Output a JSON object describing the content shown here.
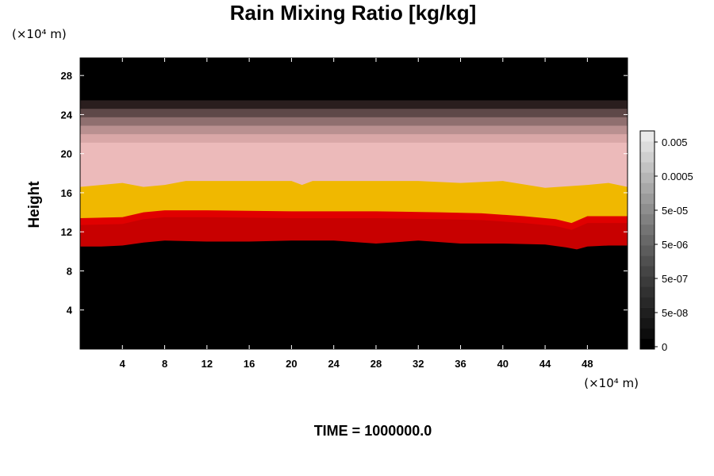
{
  "chart_data": {
    "type": "heatmap",
    "title": "Rain Mixing Ratio [kg/kg]",
    "ylabel": "Height",
    "x_unit": "(×10⁴ m)",
    "y_unit": "(×10⁴ m)",
    "footer": "TIME = 1000000.0",
    "xlim": [
      0,
      51.8
    ],
    "ylim": [
      0,
      29.8
    ],
    "x_ticks": [
      4,
      8,
      12,
      16,
      20,
      24,
      28,
      32,
      36,
      40,
      44,
      48
    ],
    "y_ticks": [
      4,
      8,
      12,
      16,
      20,
      24,
      28
    ],
    "colorbar": {
      "labels": [
        "0",
        "5e-08",
        "5e-07",
        "5e-06",
        "5e-05",
        "0.0005",
        "0.005"
      ],
      "colors": [
        "#000000",
        "#0d0d0d",
        "#161616",
        "#1f1f1f",
        "#282828",
        "#313131",
        "#3b3b3b",
        "#454545",
        "#505050",
        "#5c5c5c",
        "#686868",
        "#747474",
        "#818181",
        "#8e8e8e",
        "#9b9b9b",
        "#a8a8a8",
        "#b5b5b5",
        "#c2c2c2",
        "#cfcfcf",
        "#dcdcdc",
        "#e9e9e9"
      ]
    },
    "layers": [
      {
        "name": "rain-layer-red",
        "color": "#e00000",
        "y_top": 14.2
      },
      {
        "name": "rain-layer-yellow",
        "color": "#f0b800",
        "y_top": 16.9
      },
      {
        "name": "rain-layer-pink",
        "color": "#ecbaba",
        "y_top": 20.3
      }
    ],
    "rain_base": {
      "x": [
        0,
        2,
        4,
        6,
        8,
        12,
        16,
        20,
        24,
        28,
        32,
        36,
        40,
        44,
        46,
        47,
        48,
        50,
        51.8
      ],
      "y": [
        10.5,
        10.5,
        10.6,
        10.9,
        11.1,
        11.0,
        11.0,
        11.1,
        11.1,
        10.8,
        11.1,
        10.8,
        10.8,
        10.7,
        10.4,
        10.2,
        10.5,
        10.6,
        10.6
      ]
    },
    "red_top": {
      "x": [
        0,
        4,
        6,
        8,
        12,
        20,
        28,
        34,
        38,
        42,
        45,
        46.5,
        48,
        50,
        51.8
      ],
      "y": [
        13.4,
        13.5,
        14.0,
        14.2,
        14.2,
        14.1,
        14.1,
        14.0,
        13.9,
        13.6,
        13.3,
        12.9,
        13.6,
        13.6,
        13.6
      ]
    },
    "yellow_top": {
      "x": [
        0,
        2,
        4,
        6,
        8,
        10,
        20,
        21,
        22,
        32,
        36,
        40,
        44,
        48,
        50,
        51.8
      ],
      "y": [
        16.6,
        16.8,
        17.0,
        16.6,
        16.8,
        17.2,
        17.2,
        16.8,
        17.2,
        17.2,
        17.0,
        17.2,
        16.5,
        16.8,
        17.0,
        16.6
      ]
    },
    "fade": {
      "y_bottom": 20.3,
      "y_top": 25.5,
      "colors": [
        "#ecbaba",
        "#d9a7a7",
        "#b99090",
        "#8f6f6f",
        "#5e4848",
        "#2a1e1e",
        "#000000"
      ]
    }
  }
}
